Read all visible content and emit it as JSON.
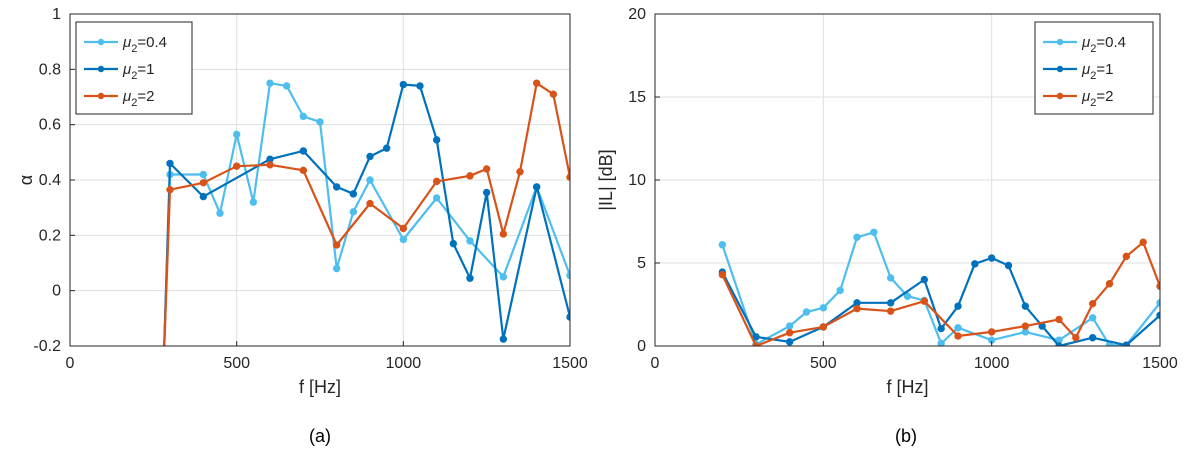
{
  "colors": {
    "mu04": "#4DBEEE",
    "mu1": "#0072BD",
    "mu2": "#D95319"
  },
  "chart_data": [
    {
      "type": "line",
      "caption": "(a)",
      "xlabel": "f [Hz]",
      "ylabel": "α",
      "xlim": [
        0,
        1500
      ],
      "ylim": [
        -0.2,
        1
      ],
      "xticks": [
        0,
        500,
        1000,
        1500
      ],
      "yticks": [
        -0.2,
        0,
        0.2,
        0.4,
        0.6,
        0.8,
        1
      ],
      "ytick_labels": [
        "-0.2",
        "0",
        "0.2",
        "0.4",
        "0.6",
        "0.8",
        "1"
      ],
      "grid": true,
      "legend": "top-left",
      "series": [
        {
          "name_base": "μ",
          "name_sub": "2",
          "name_suffix": "=0.4",
          "color_key": "mu04",
          "x": [
            280,
            300,
            400,
            450,
            500,
            550,
            600,
            650,
            700,
            750,
            800,
            850,
            900,
            1000,
            1100,
            1200,
            1300,
            1400,
            1500
          ],
          "y": [
            -0.3,
            0.42,
            0.42,
            0.28,
            0.565,
            0.32,
            0.75,
            0.74,
            0.63,
            0.61,
            0.08,
            0.285,
            0.4,
            0.185,
            0.335,
            0.18,
            0.05,
            0.375,
            0.055
          ]
        },
        {
          "name_base": "μ",
          "name_sub": "2",
          "name_suffix": "=1",
          "color_key": "mu1",
          "x": [
            280,
            300,
            400,
            600,
            700,
            800,
            850,
            900,
            950,
            1000,
            1050,
            1100,
            1150,
            1200,
            1250,
            1300,
            1400,
            1500
          ],
          "y": [
            -0.3,
            0.46,
            0.34,
            0.475,
            0.505,
            0.375,
            0.35,
            0.485,
            0.515,
            0.745,
            0.74,
            0.545,
            0.17,
            0.045,
            0.355,
            -0.175,
            0.375,
            -0.095
          ]
        },
        {
          "name_base": "μ",
          "name_sub": "2",
          "name_suffix": "=2",
          "color_key": "mu2",
          "x": [
            280,
            300,
            400,
            500,
            600,
            700,
            800,
            900,
            1000,
            1100,
            1200,
            1250,
            1300,
            1350,
            1400,
            1450,
            1500
          ],
          "y": [
            -0.3,
            0.365,
            0.39,
            0.45,
            0.455,
            0.435,
            0.165,
            0.315,
            0.225,
            0.395,
            0.415,
            0.44,
            0.205,
            0.43,
            0.75,
            0.71,
            0.41
          ]
        }
      ]
    },
    {
      "type": "line",
      "caption": "(b)",
      "xlabel": "f [Hz]",
      "ylabel": "|IL| [dB]",
      "xlim": [
        0,
        1500
      ],
      "ylim": [
        0,
        20
      ],
      "xticks": [
        0,
        500,
        1000,
        1500
      ],
      "yticks": [
        0,
        5,
        10,
        15,
        20
      ],
      "ytick_labels": [
        "0",
        "5",
        "10",
        "15",
        "20"
      ],
      "grid": true,
      "legend": "top-right",
      "series": [
        {
          "name_base": "μ",
          "name_sub": "2",
          "name_suffix": "=0.4",
          "color_key": "mu04",
          "x": [
            200,
            300,
            400,
            450,
            500,
            550,
            600,
            650,
            700,
            750,
            800,
            850,
            900,
            1000,
            1100,
            1200,
            1300,
            1350,
            1400,
            1500
          ],
          "y": [
            6.1,
            0.1,
            1.2,
            2.05,
            2.3,
            3.35,
            6.55,
            6.85,
            4.1,
            3.0,
            2.75,
            0.15,
            1.1,
            0.35,
            0.85,
            0.35,
            1.7,
            0.05,
            0.05,
            2.6
          ]
        },
        {
          "name_base": "μ",
          "name_sub": "2",
          "name_suffix": "=1",
          "color_key": "mu1",
          "x": [
            200,
            300,
            400,
            500,
            600,
            700,
            800,
            850,
            900,
            950,
            1000,
            1050,
            1100,
            1150,
            1200,
            1300,
            1400,
            1500
          ],
          "y": [
            4.45,
            0.55,
            0.25,
            1.15,
            2.6,
            2.6,
            4.0,
            1.05,
            2.4,
            4.95,
            5.3,
            4.85,
            2.4,
            1.2,
            0.0,
            0.5,
            0.05,
            1.85
          ]
        },
        {
          "name_base": "μ",
          "name_sub": "2",
          "name_suffix": "=2",
          "color_key": "mu2",
          "x": [
            200,
            300,
            400,
            500,
            600,
            700,
            800,
            900,
            1000,
            1100,
            1200,
            1250,
            1300,
            1350,
            1400,
            1450,
            1500
          ],
          "y": [
            4.3,
            0.0,
            0.8,
            1.15,
            2.25,
            2.1,
            2.7,
            0.6,
            0.85,
            1.2,
            1.6,
            0.5,
            2.55,
            3.75,
            5.4,
            6.25,
            3.6
          ]
        }
      ]
    }
  ]
}
